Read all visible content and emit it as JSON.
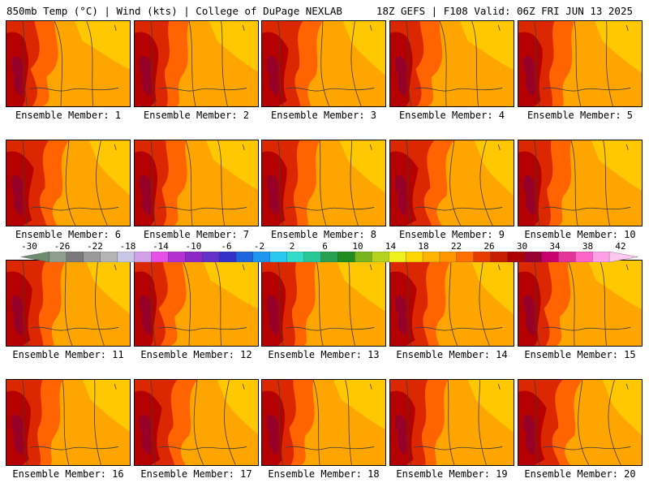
{
  "header": {
    "left_title": "850mb Temp (°C) | Wind (kts) | College of DuPage NEXLAB",
    "right_title": "18Z GEFS | F108 Valid: 06Z FRI JUN 13 2025"
  },
  "members": [
    {
      "label": "Ensemble Member: 1"
    },
    {
      "label": "Ensemble Member: 2"
    },
    {
      "label": "Ensemble Member: 3"
    },
    {
      "label": "Ensemble Member: 4"
    },
    {
      "label": "Ensemble Member: 5"
    },
    {
      "label": "Ensemble Member: 6"
    },
    {
      "label": "Ensemble Member: 7"
    },
    {
      "label": "Ensemble Member: 8"
    },
    {
      "label": "Ensemble Member: 9"
    },
    {
      "label": "Ensemble Member: 10"
    },
    {
      "label": "Ensemble Member: 11"
    },
    {
      "label": "Ensemble Member: 12"
    },
    {
      "label": "Ensemble Member: 13"
    },
    {
      "label": "Ensemble Member: 14"
    },
    {
      "label": "Ensemble Member: 15"
    },
    {
      "label": "Ensemble Member: 16"
    },
    {
      "label": "Ensemble Member: 17"
    },
    {
      "label": "Ensemble Member: 18"
    },
    {
      "label": "Ensemble Member: 19"
    },
    {
      "label": "Ensemble Member: 20"
    }
  ],
  "colorbar": {
    "labels": [
      "-30",
      "-26",
      "-22",
      "-18",
      "-14",
      "-10",
      "-6",
      "-2",
      "2",
      "6",
      "10",
      "14",
      "18",
      "22",
      "26",
      "30",
      "34",
      "38",
      "42"
    ],
    "colors": [
      "#6e8b6e",
      "#8f9f8f",
      "#7a7a7a",
      "#9a9a9a",
      "#b4b4b4",
      "#c8c8e6",
      "#d2a0e6",
      "#e650e6",
      "#b432d2",
      "#8c28c8",
      "#6432c8",
      "#3232c8",
      "#1e64dc",
      "#1e96f0",
      "#28c8f0",
      "#32dcc8",
      "#28c896",
      "#28a050",
      "#1e8c1e",
      "#78b41e",
      "#b4d21e",
      "#f0f01e",
      "#ffd700",
      "#ffb400",
      "#ff9600",
      "#ff6e00",
      "#e63c00",
      "#c81e00",
      "#aa0000",
      "#960032",
      "#c8006e",
      "#e6329b",
      "#ff64c8",
      "#ffa0e6",
      "#ffc8f0"
    ]
  },
  "map_colors": {
    "base": "#ffa500",
    "warm": "#ff6400",
    "hot": "#dc2800",
    "hotter": "#b40000",
    "hottest": "#960028",
    "cool": "#ffc800",
    "coolest": "#ffe600",
    "contour": "#3c3c3c"
  }
}
